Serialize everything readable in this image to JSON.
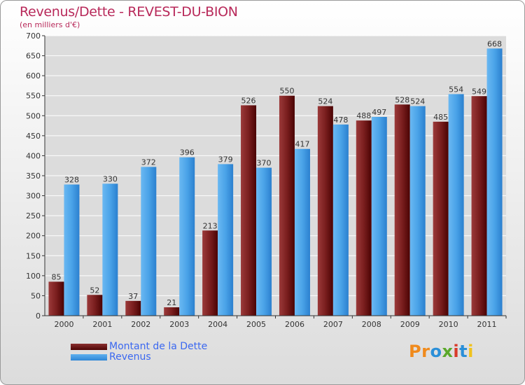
{
  "header": {
    "title": "Revenus/Dette - REVEST-DU-BION",
    "subtitle": "(en milliers d'€)"
  },
  "legend": {
    "dette_label": "Montant de la Dette",
    "revenus_label": "Revenus"
  },
  "logo": {
    "text": "Proxiti",
    "colors": [
      "#f08a1c",
      "#f08a1c",
      "#2a8fd8",
      "#5aa82a",
      "#d83a2a",
      "#2a8fd8",
      "#f0c21c"
    ]
  },
  "colors": {
    "dette": "#6b1212",
    "revenus": "#4aa3e8",
    "title": "#b8295a",
    "legend_text": "#3b68f0"
  },
  "chart_data": {
    "type": "bar",
    "title": "Revenus/Dette - REVEST-DU-BION",
    "subtitle": "(en milliers d'€)",
    "categories": [
      "2000",
      "2001",
      "2002",
      "2003",
      "2004",
      "2005",
      "2006",
      "2007",
      "2008",
      "2009",
      "2010",
      "2011"
    ],
    "series": [
      {
        "name": "Montant de la Dette",
        "values": [
          85,
          52,
          37,
          21,
          213,
          526,
          550,
          524,
          488,
          528,
          485,
          549
        ]
      },
      {
        "name": "Revenus",
        "values": [
          328,
          330,
          372,
          396,
          379,
          370,
          417,
          478,
          497,
          524,
          554,
          668
        ]
      }
    ],
    "ylim": [
      0,
      700
    ],
    "yticks": [
      0,
      50,
      100,
      150,
      200,
      250,
      300,
      350,
      400,
      450,
      500,
      550,
      600,
      650,
      700
    ],
    "grid": true,
    "legend_position": "bottom-left"
  }
}
